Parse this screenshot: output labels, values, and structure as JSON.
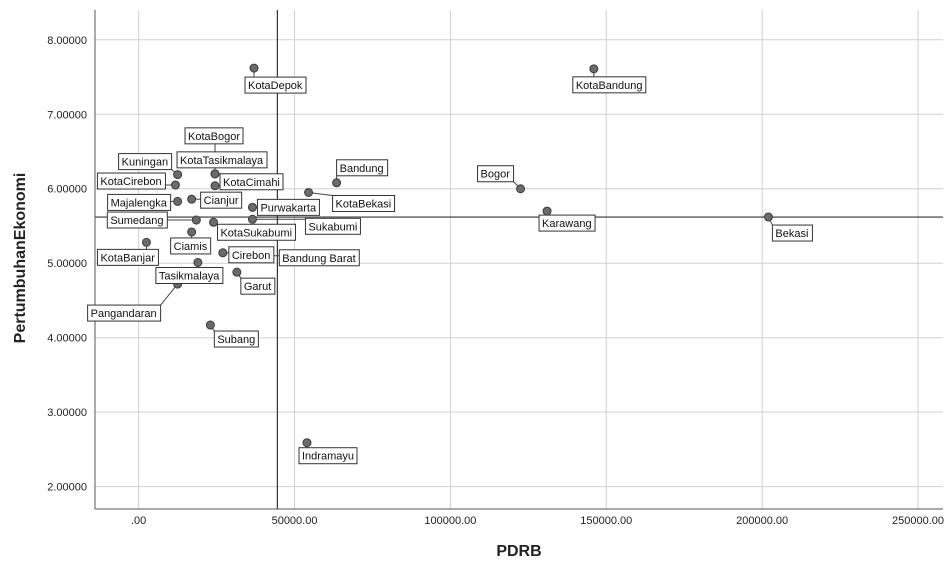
{
  "chart_data": {
    "type": "scatter",
    "xlabel": "PDRB",
    "ylabel": "PertumbuhanEkonomi",
    "xlim": [
      -14000,
      258000
    ],
    "ylim": [
      1.7,
      8.4
    ],
    "x_ticks": [
      0,
      50000,
      100000,
      150000,
      200000,
      250000
    ],
    "x_tick_labels": [
      ".00",
      "50000.00",
      "100000.00",
      "150000.00",
      "200000.00",
      "250000.00"
    ],
    "y_ticks": [
      2,
      3,
      4,
      5,
      6,
      7,
      8
    ],
    "y_tick_labels": [
      "2.00000",
      "3.00000",
      "4.00000",
      "5.00000",
      "6.00000",
      "7.00000",
      "8.00000"
    ],
    "grid": true,
    "reference_lines": {
      "x": 44500,
      "y": 5.62
    },
    "colors": {
      "point": "#6b6b6b",
      "grid": "#d0d0d0",
      "axis": "#555555",
      "reference": "#333333"
    },
    "points": [
      {
        "label": "KotaDepok",
        "x": 37000,
        "y": 7.62
      },
      {
        "label": "KotaBandung",
        "x": 146000,
        "y": 7.61
      },
      {
        "label": "KotaBogor",
        "x": 24500,
        "y": 6.2
      },
      {
        "label": "Kuningan",
        "x": 12500,
        "y": 6.19
      },
      {
        "label": "KotaTasikmalaya",
        "x": 24500,
        "y": 6.2
      },
      {
        "label": "KotaCirebon",
        "x": 11800,
        "y": 6.05
      },
      {
        "label": "KotaCimahi",
        "x": 24500,
        "y": 6.04
      },
      {
        "label": "Bandung",
        "x": 63500,
        "y": 6.08
      },
      {
        "label": "Bogor",
        "x": 122500,
        "y": 6.0
      },
      {
        "label": "KotaBekasi",
        "x": 54500,
        "y": 5.95
      },
      {
        "label": "Majalengka",
        "x": 12500,
        "y": 5.83
      },
      {
        "label": "Cianjur",
        "x": 17000,
        "y": 5.86
      },
      {
        "label": "Purwakarta",
        "x": 36500,
        "y": 5.75
      },
      {
        "label": "Sumedang",
        "x": 18500,
        "y": 5.58
      },
      {
        "label": "KotaSukabumi",
        "x": 24000,
        "y": 5.55
      },
      {
        "label": "Sukabumi",
        "x": 36500,
        "y": 5.59
      },
      {
        "label": "Karawang",
        "x": 131000,
        "y": 5.7
      },
      {
        "label": "Bekasi",
        "x": 202000,
        "y": 5.62
      },
      {
        "label": "KotaBanjar",
        "x": 2500,
        "y": 5.28
      },
      {
        "label": "Ciamis",
        "x": 17000,
        "y": 5.42
      },
      {
        "label": "Cirebon",
        "x": 27000,
        "y": 5.14
      },
      {
        "label": "Bandung Barat",
        "x": 31000,
        "y": 5.1
      },
      {
        "label": "Tasikmalaya",
        "x": 19000,
        "y": 5.01
      },
      {
        "label": "Garut",
        "x": 31500,
        "y": 4.88
      },
      {
        "label": "Pangandaran",
        "x": 12500,
        "y": 4.72
      },
      {
        "label": "Subang",
        "x": 23000,
        "y": 4.17
      },
      {
        "label": "Indramayu",
        "x": 54000,
        "y": 2.59
      }
    ]
  }
}
